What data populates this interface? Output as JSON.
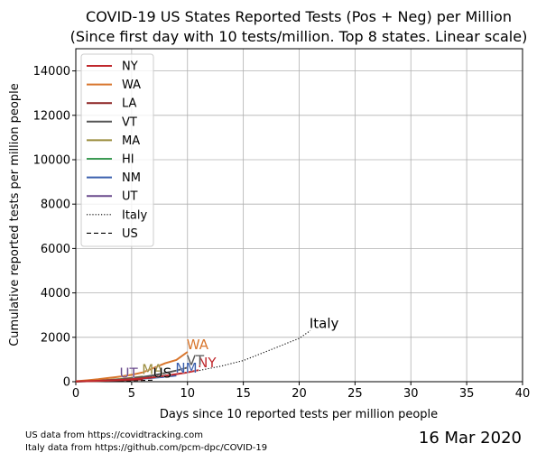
{
  "chart_data": {
    "type": "line",
    "title": "COVID-19 US States Reported Tests (Pos + Neg) per Million",
    "subtitle": "(Since first day with 10 tests/million. Top 8 states. Linear scale)",
    "xlabel": "Days since 10 reported tests per million people",
    "ylabel": "Cumulative reported tests per million people",
    "xlim": [
      0,
      40
    ],
    "ylim": [
      0,
      15000
    ],
    "xticks": [
      0,
      5,
      10,
      15,
      20,
      25,
      30,
      35,
      40
    ],
    "yticks": [
      0,
      2000,
      4000,
      6000,
      8000,
      10000,
      12000,
      14000
    ],
    "grid": true,
    "legend_position": "top-left",
    "series": [
      {
        "name": "NY",
        "color": "#c0282d",
        "style": "solid",
        "label": "NY",
        "x": [
          0,
          1,
          2,
          3,
          4,
          5,
          6,
          7,
          8,
          9,
          10,
          11
        ],
        "y": [
          15,
          25,
          40,
          60,
          80,
          110,
          150,
          200,
          270,
          340,
          420,
          520
        ]
      },
      {
        "name": "WA",
        "color": "#d8752c",
        "style": "solid",
        "label": "WA",
        "x": [
          0,
          1,
          2,
          3,
          4,
          5,
          6,
          7,
          8,
          9,
          10
        ],
        "y": [
          20,
          60,
          110,
          170,
          230,
          310,
          420,
          620,
          830,
          980,
          1340
        ]
      },
      {
        "name": "LA",
        "color": "#8b2222",
        "style": "solid",
        "label": "",
        "x": [
          0,
          1,
          2,
          3,
          4,
          5,
          6
        ],
        "y": [
          12,
          20,
          30,
          45,
          60,
          80,
          100
        ]
      },
      {
        "name": "VT",
        "color": "#555555",
        "style": "solid",
        "label": "VT",
        "x": [
          0,
          1,
          2,
          3,
          4,
          5,
          6,
          7,
          8,
          9,
          10
        ],
        "y": [
          15,
          30,
          50,
          75,
          100,
          150,
          210,
          290,
          390,
          500,
          640
        ]
      },
      {
        "name": "MA",
        "color": "#9a8c3c",
        "style": "solid",
        "label": "MA",
        "x": [
          0,
          1,
          2,
          3,
          4,
          5,
          6
        ],
        "y": [
          12,
          30,
          55,
          85,
          120,
          170,
          230
        ]
      },
      {
        "name": "HI",
        "color": "#3d9b55",
        "style": "solid",
        "label": "",
        "x": [
          0,
          1,
          2,
          3
        ],
        "y": [
          12,
          20,
          30,
          45
        ]
      },
      {
        "name": "NM",
        "color": "#3a5fad",
        "style": "solid",
        "label": "NM",
        "x": [
          0,
          1,
          2,
          3,
          4,
          5,
          6,
          7,
          8,
          9
        ],
        "y": [
          12,
          25,
          40,
          60,
          80,
          110,
          140,
          180,
          220,
          280
        ]
      },
      {
        "name": "UT",
        "color": "#6a4a8c",
        "style": "solid",
        "label": "UT",
        "x": [
          0,
          1,
          2,
          3,
          4
        ],
        "y": [
          10,
          20,
          35,
          50,
          65
        ]
      },
      {
        "name": "Italy",
        "color": "#000000",
        "style": "dotted",
        "label": "Italy",
        "x": [
          0,
          1,
          2,
          3,
          4,
          5,
          6,
          7,
          8,
          9,
          10,
          11,
          12,
          13,
          14,
          15,
          16,
          17,
          18,
          19,
          20,
          21
        ],
        "y": [
          15,
          40,
          65,
          90,
          120,
          150,
          190,
          240,
          290,
          340,
          420,
          500,
          600,
          700,
          830,
          950,
          1150,
          1350,
          1550,
          1750,
          1950,
          2300
        ]
      },
      {
        "name": "US",
        "color": "#000000",
        "style": "dashed",
        "label": "US",
        "x": [
          0,
          1,
          2,
          3,
          4,
          5,
          6,
          7
        ],
        "y": [
          10,
          14,
          19,
          25,
          33,
          43,
          55,
          70
        ]
      }
    ]
  },
  "footer": {
    "source_us": "US data from https://covidtracking.com",
    "source_italy": "Italy data from https://github.com/pcm-dpc/COVID-19",
    "date": "16 Mar 2020"
  }
}
